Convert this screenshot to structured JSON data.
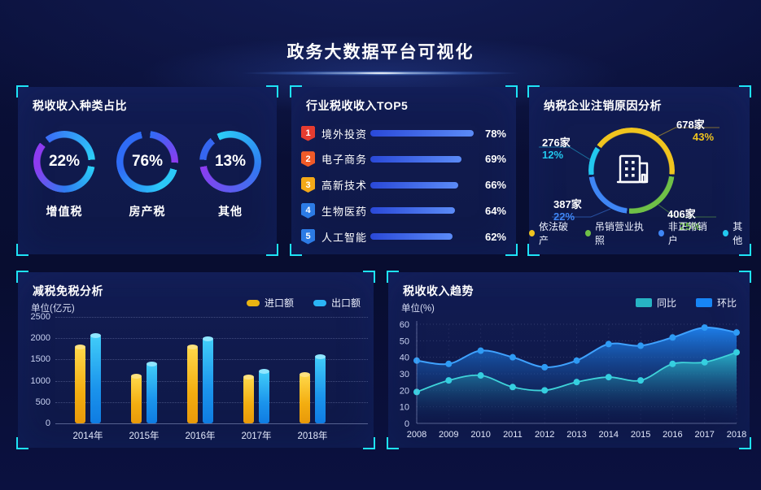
{
  "page_title": "政务大数据平台可视化",
  "colors": {
    "corner_accent": "#1ee3f6",
    "panel_bg": "#101a4e",
    "page_bg": "#080d30"
  },
  "chart_data": [
    {
      "type": "pie",
      "title": "税收收入种类占比",
      "rings": [
        {
          "label": "增值税",
          "value": 22,
          "percent_label": "22%"
        },
        {
          "label": "房产税",
          "value": 76,
          "percent_label": "76%"
        },
        {
          "label": "其他",
          "value": 13,
          "percent_label": "13%"
        }
      ]
    },
    {
      "type": "bar",
      "title": "行业税收收入TOP5",
      "items": [
        {
          "rank": "1",
          "label": "境外投资",
          "value": 78,
          "percent_label": "78%",
          "badge_color": "#e63c30"
        },
        {
          "rank": "2",
          "label": "电子商务",
          "value": 69,
          "percent_label": "69%",
          "badge_color": "#f05a28"
        },
        {
          "rank": "3",
          "label": "高新技术",
          "value": 66,
          "percent_label": "66%",
          "badge_color": "#f3a818"
        },
        {
          "rank": "4",
          "label": "生物医药",
          "value": 64,
          "percent_label": "64%",
          "badge_color": "#2c7be5"
        },
        {
          "rank": "5",
          "label": "人工智能",
          "value": 62,
          "percent_label": "62%",
          "badge_color": "#2c7be5"
        }
      ]
    },
    {
      "type": "pie",
      "title": "纳税企业注销原因分析",
      "slices": [
        {
          "label": "依法破产",
          "count_label": "678家",
          "percent_label": "43%",
          "value": 43,
          "color": "#f0c41e"
        },
        {
          "label": "吊销营业执照",
          "count_label": "406家",
          "percent_label": "25%",
          "value": 25,
          "color": "#6fc047"
        },
        {
          "label": "非正常销户",
          "count_label": "387家",
          "percent_label": "22%",
          "value": 22,
          "color": "#3f86f5"
        },
        {
          "label": "其他",
          "count_label": "276家",
          "percent_label": "12%",
          "value": 12,
          "color": "#22c8ef"
        }
      ]
    },
    {
      "type": "bar",
      "title": "减税免税分析",
      "unit": "单位(亿元)",
      "categories": [
        "2014年",
        "2015年",
        "2016年",
        "2017年",
        "2018年"
      ],
      "series": [
        {
          "name": "进口额",
          "color": "#e9b312",
          "values": [
            1800,
            1100,
            1800,
            1080,
            1150
          ]
        },
        {
          "name": "出口额",
          "color": "#2bb4f5",
          "values": [
            2070,
            1400,
            1980,
            1230,
            1560
          ]
        }
      ],
      "ylim": [
        0,
        2500
      ],
      "yticks": [
        0,
        500,
        1000,
        1500,
        2000,
        2500
      ]
    },
    {
      "type": "area",
      "title": "税收收入趋势",
      "unit": "单位(%)",
      "x": [
        "2008",
        "2009",
        "2010",
        "2011",
        "2012",
        "2013",
        "2014",
        "2015",
        "2016",
        "2017",
        "2018"
      ],
      "series": [
        {
          "name": "环比",
          "color": "#1785f5",
          "values": [
            38,
            36,
            44,
            40,
            34,
            38,
            48,
            47,
            52,
            58,
            55
          ]
        },
        {
          "name": "同比",
          "color": "#27b3c3",
          "values": [
            19,
            26,
            29,
            22,
            20,
            25,
            28,
            26,
            36,
            37,
            43
          ]
        }
      ],
      "ylim": [
        0,
        60
      ],
      "yticks": [
        0,
        10,
        20,
        30,
        40,
        50,
        60
      ]
    }
  ]
}
